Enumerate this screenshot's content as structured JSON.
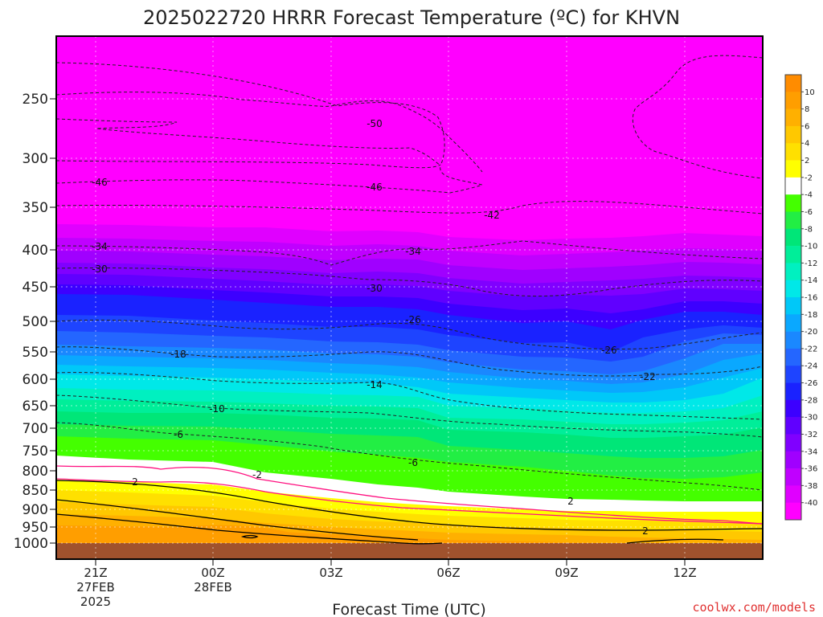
{
  "chart_data": {
    "type": "heatmap",
    "title": "2025022720 HRRR Forecast Temperature (ºC) for KHVN",
    "xlabel": "Forecast Time (UTC)",
    "ylabel": "",
    "y_ticks": [
      "250",
      "300",
      "350",
      "400",
      "450",
      "500",
      "550",
      "600",
      "650",
      "700",
      "750",
      "800",
      "850",
      "900",
      "950",
      "1000"
    ],
    "x_ticks": [
      {
        "label": "21Z",
        "sub": [
          "27FEB",
          "2025"
        ]
      },
      {
        "label": "00Z",
        "sub": [
          "28FEB"
        ]
      },
      {
        "label": "03Z",
        "sub": []
      },
      {
        "label": "06Z",
        "sub": []
      },
      {
        "label": "09Z",
        "sub": []
      },
      {
        "label": "12Z",
        "sub": []
      }
    ],
    "colorbar": {
      "levels": [
        10,
        8,
        6,
        4,
        2,
        -2,
        -4,
        -6,
        -8,
        -10,
        -12,
        -14,
        -16,
        -18,
        -20,
        -22,
        -24,
        -26,
        -28,
        -30,
        -32,
        -34,
        -36,
        -38,
        -40
      ],
      "colors": [
        "#ff8c00",
        "#ff9e00",
        "#ffb000",
        "#ffc800",
        "#ffe000",
        "#ffff00",
        "#ffffff",
        "#44ff00",
        "#22ee44",
        "#00e678",
        "#00ee99",
        "#00f0c0",
        "#00e8e8",
        "#00c8f8",
        "#0aa8ff",
        "#1a88ff",
        "#2466ff",
        "#1e44ff",
        "#1a22ff",
        "#3c00ff",
        "#6000ff",
        "#8000ff",
        "#a000ff",
        "#c000ff",
        "#e000ff",
        "#ff00ff"
      ]
    },
    "contour_labels": [
      "-50",
      "-46",
      "-46",
      "-42",
      "-34",
      "-34",
      "-30",
      "-30",
      "-26",
      "-26",
      "-22",
      "-18",
      "-14",
      "-10",
      "-6",
      "-6",
      "-2",
      "2",
      "2",
      "2"
    ],
    "credit": "coolwx.com/models"
  }
}
